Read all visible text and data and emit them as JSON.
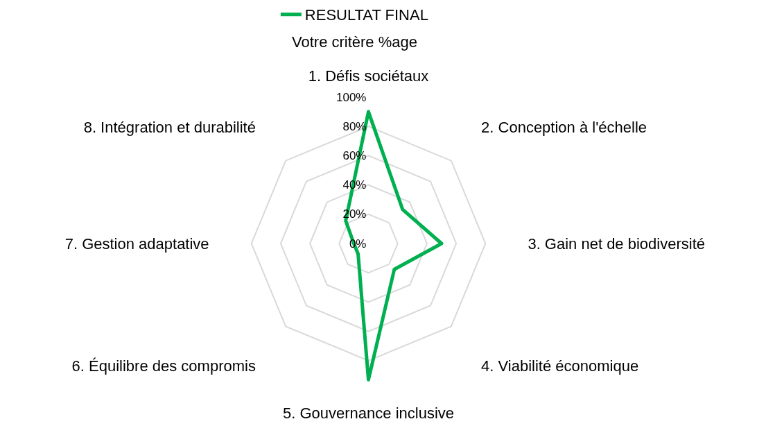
{
  "chart_data": {
    "type": "radar",
    "title": "Votre critère %age",
    "categories": [
      "1. Défis sociétaux",
      "2. Conception à l'échelle",
      "3. Gain net de biodiversité",
      "4. Viabilité économique",
      "5. Gouvernance inclusive",
      "6. Équilibre des compromis",
      "7. Gestion adaptative",
      "8. Intégration et durabilité"
    ],
    "series": [
      {
        "name": "RESULTAT FINAL",
        "color": "#00b050",
        "values": [
          90,
          33,
          50,
          25,
          93,
          10,
          10,
          22
        ]
      }
    ],
    "ylim": [
      0,
      100
    ],
    "yticks": [
      {
        "value": 0,
        "label": "0%"
      },
      {
        "value": 20,
        "label": "20%"
      },
      {
        "value": 40,
        "label": "40%"
      },
      {
        "value": 60,
        "label": "60%"
      },
      {
        "value": 80,
        "label": "80%"
      },
      {
        "value": 100,
        "label": "100%"
      }
    ],
    "grid": true,
    "legend": "top",
    "marker": "none"
  }
}
